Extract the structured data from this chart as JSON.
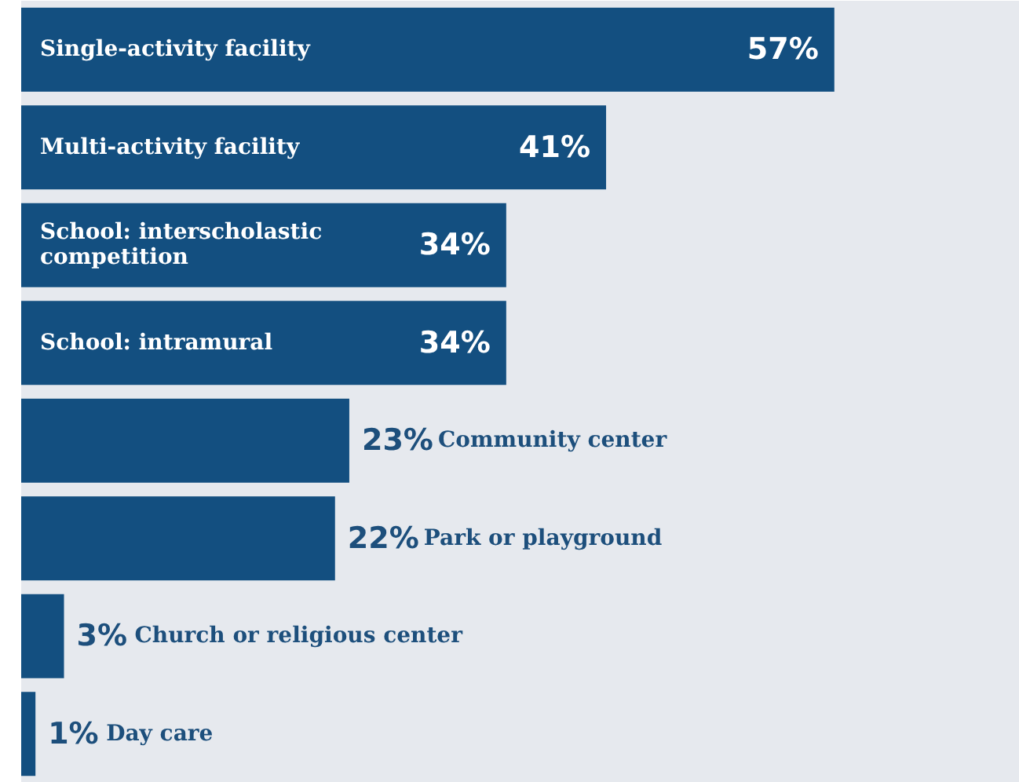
{
  "chart_data": {
    "type": "bar",
    "orientation": "horizontal",
    "categories": [
      "Single-activity facility",
      "Multi-activity facility",
      "School: interscholastic competition",
      "School: intramural",
      "Community center",
      "Park or playground",
      "Church or religious center",
      "Day care"
    ],
    "values": [
      57,
      41,
      34,
      34,
      23,
      22,
      3,
      1
    ],
    "value_labels": [
      "57%",
      "41%",
      "34%",
      "34%",
      "23%",
      "22%",
      "3%",
      "1%"
    ],
    "color": "#134f80",
    "xlim": [
      0,
      70
    ]
  }
}
